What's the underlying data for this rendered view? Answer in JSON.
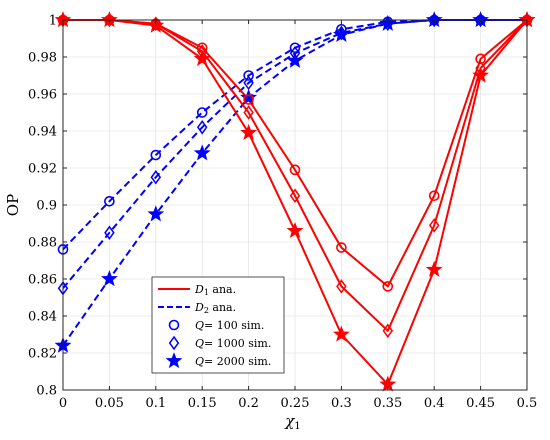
{
  "chart_data": {
    "type": "line",
    "xlabel": "χ",
    "xlabel_sub": "1",
    "ylabel": "OP",
    "xlim": [
      0,
      0.5
    ],
    "ylim": [
      0.8,
      1.0
    ],
    "xticks": [
      0,
      0.05,
      0.1,
      0.15,
      0.2,
      0.25,
      0.3,
      0.35,
      0.4,
      0.45,
      0.5
    ],
    "xtick_labels": [
      "0",
      "0.05",
      "0.1",
      "0.15",
      "0.2",
      "0.25",
      "0.3",
      "0.35",
      "0.4",
      "0.45",
      "0.5"
    ],
    "yticks": [
      0.8,
      0.82,
      0.84,
      0.86,
      0.88,
      0.9,
      0.92,
      0.94,
      0.96,
      0.98,
      1.0
    ],
    "ytick_labels": [
      "0.8",
      "0.82",
      "0.84",
      "0.86",
      "0.88",
      "0.9",
      "0.92",
      "0.94",
      "0.96",
      "0.98",
      "1"
    ],
    "grid": true,
    "legend_placement": "lower-left",
    "colors": {
      "d1": "#ff0000",
      "d2": "#0000ff"
    },
    "x": [
      0,
      0.05,
      0.1,
      0.15,
      0.2,
      0.25,
      0.3,
      0.35,
      0.4,
      0.45,
      0.5
    ],
    "series": [
      {
        "group": "D1",
        "style": "solid",
        "marker": "circle",
        "values": [
          1.0,
          1.0,
          0.998,
          0.985,
          0.957,
          0.919,
          0.877,
          0.856,
          0.905,
          0.979,
          1.0
        ]
      },
      {
        "group": "D1",
        "style": "solid",
        "marker": "diamond",
        "values": [
          1.0,
          1.0,
          0.998,
          0.983,
          0.95,
          0.905,
          0.856,
          0.832,
          0.889,
          0.974,
          1.0
        ]
      },
      {
        "group": "D1",
        "style": "solid",
        "marker": "star",
        "values": [
          1.0,
          1.0,
          0.997,
          0.979,
          0.939,
          0.886,
          0.83,
          0.803,
          0.865,
          0.97,
          1.0
        ]
      },
      {
        "group": "D2",
        "style": "dashed",
        "marker": "circle",
        "values": [
          0.876,
          0.902,
          0.927,
          0.95,
          0.97,
          0.985,
          0.995,
          0.999,
          1.0,
          1.0,
          1.0
        ]
      },
      {
        "group": "D2",
        "style": "dashed",
        "marker": "diamond",
        "values": [
          0.855,
          0.885,
          0.915,
          0.942,
          0.966,
          0.982,
          0.993,
          0.998,
          1.0,
          1.0,
          1.0
        ]
      },
      {
        "group": "D2",
        "style": "dashed",
        "marker": "star",
        "values": [
          0.824,
          0.86,
          0.895,
          0.928,
          0.958,
          0.978,
          0.992,
          0.998,
          1.0,
          1.0,
          1.0
        ]
      }
    ],
    "legend": [
      {
        "kind": "line",
        "style": "solid",
        "color": "#ff0000",
        "sym": "D",
        "sub": "1",
        "text": " ana."
      },
      {
        "kind": "line",
        "style": "dashed",
        "color": "#0000ff",
        "sym": "D",
        "sub": "2",
        "text": " ana."
      },
      {
        "kind": "marker",
        "marker": "circle",
        "color": "#0000ff",
        "sym": "Q",
        "sub": "",
        "text": "= 100 sim."
      },
      {
        "kind": "marker",
        "marker": "diamond",
        "color": "#0000ff",
        "sym": "Q",
        "sub": "",
        "text": "= 1000 sim."
      },
      {
        "kind": "marker",
        "marker": "star",
        "color": "#0000ff",
        "sym": "Q",
        "sub": "",
        "text": "= 2000 sim."
      }
    ]
  }
}
